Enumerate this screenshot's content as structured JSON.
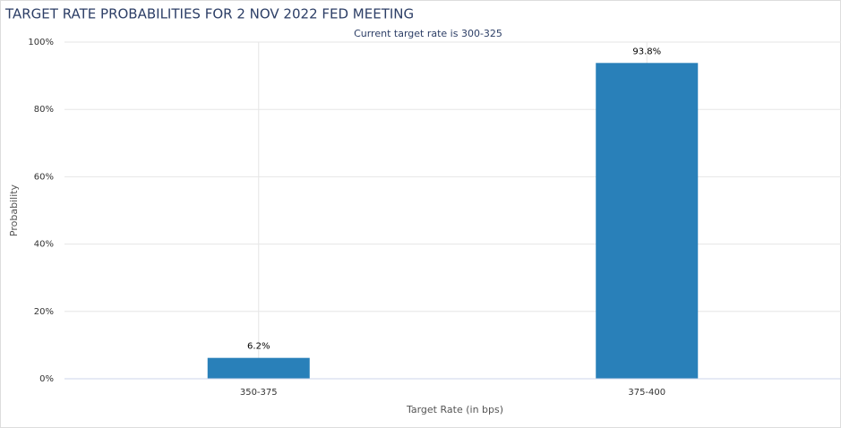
{
  "chart_data": {
    "type": "bar",
    "title": "TARGET RATE PROBABILITIES FOR 2 NOV 2022 FED MEETING",
    "subtitle": "Current target rate is 300-325",
    "x_label": "Target Rate (in bps)",
    "y_label": "Probability",
    "categories": [
      "350-375",
      "375-400"
    ],
    "values": [
      6.2,
      93.8
    ],
    "value_labels": [
      "6.2%",
      "93.8%"
    ],
    "color": "#2980b9",
    "ylim": [
      0,
      100
    ],
    "yticks": [
      {
        "value": 0,
        "label": "0%"
      },
      {
        "value": 20,
        "label": "20%"
      },
      {
        "value": 40,
        "label": "40%"
      },
      {
        "value": 60,
        "label": "60%"
      },
      {
        "value": 80,
        "label": "80%"
      },
      {
        "value": 100,
        "label": "100%"
      }
    ],
    "grid": true
  }
}
